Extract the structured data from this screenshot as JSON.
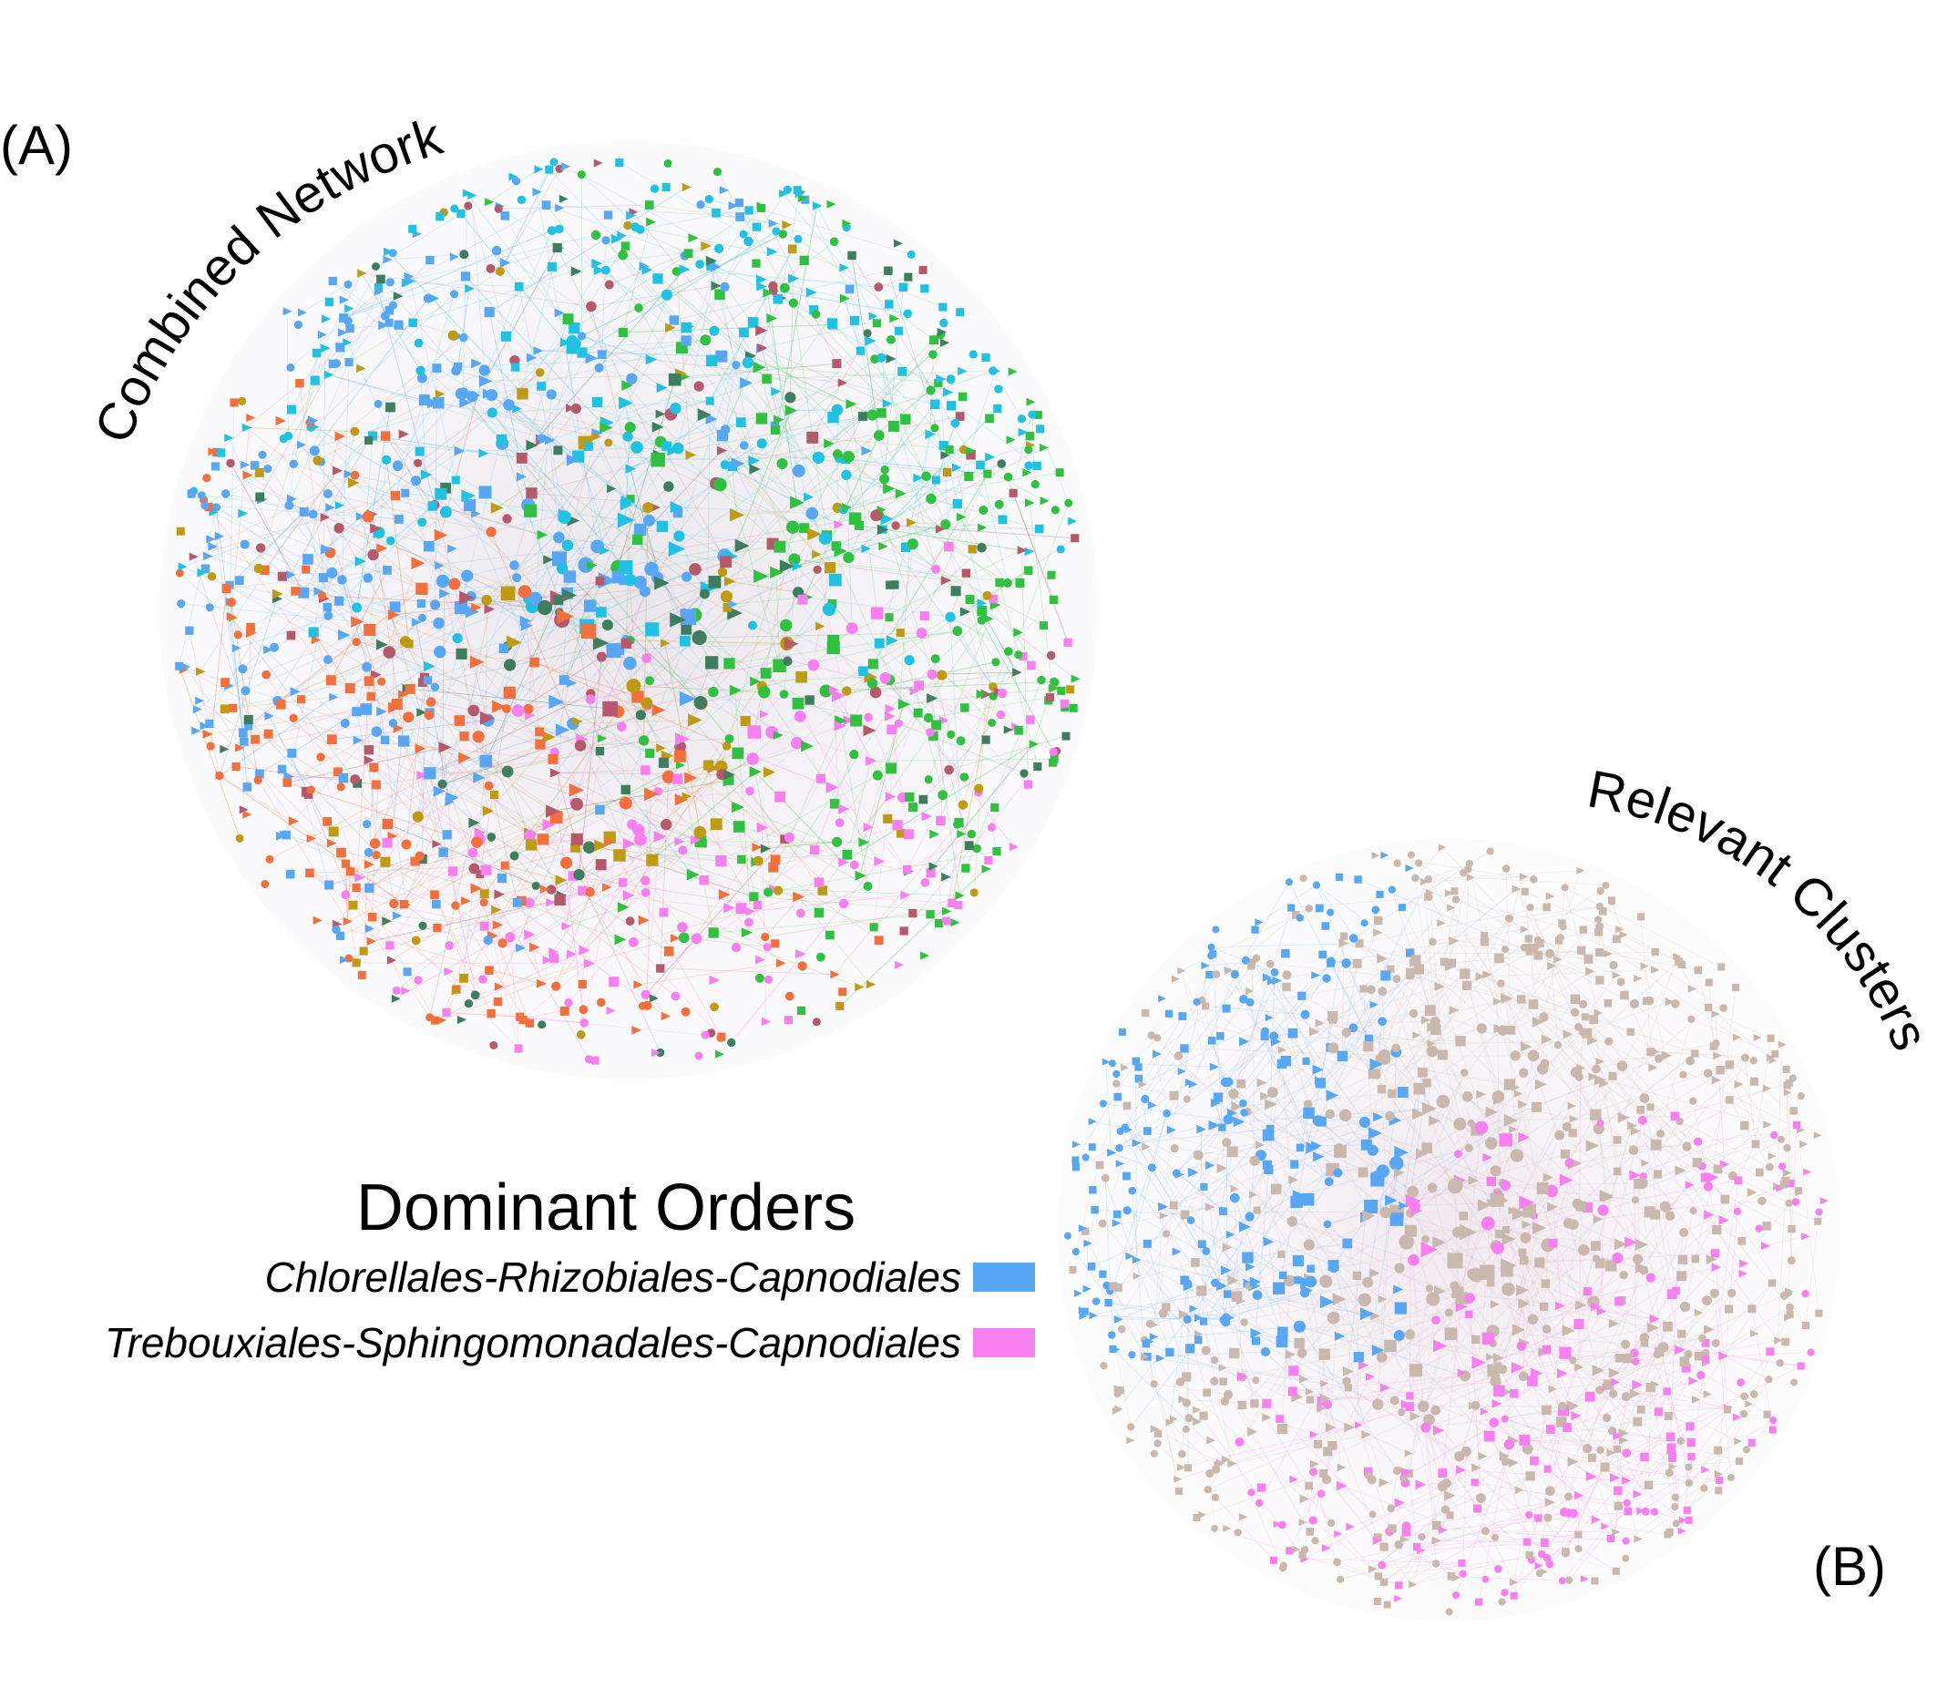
{
  "panels": {
    "a": {
      "label": "(A)",
      "title": "Combined Network"
    },
    "b": {
      "label": "(B)",
      "title": "Relevant Clusters"
    }
  },
  "legend": {
    "title": "Dominant Orders",
    "entries": [
      {
        "label": "Chlorellales-Rhizobiales-Capnodiales",
        "color": "#58a7f4"
      },
      {
        "label": "Trebouxiales-Sphingomonadales-Capnodiales",
        "color": "#f77ff0"
      }
    ]
  },
  "colors": {
    "network_a": [
      "#58a7f4",
      "#21c1e4",
      "#2fc13f",
      "#f77ff0",
      "#f36f3c",
      "#be9b12",
      "#b45a6c",
      "#3f7d5f"
    ],
    "network_b_background": "#c8b8ae",
    "network_b_highlight": [
      "#58a7f4",
      "#f77ff0"
    ]
  },
  "node_shapes": [
    "circle",
    "square",
    "triangle"
  ]
}
